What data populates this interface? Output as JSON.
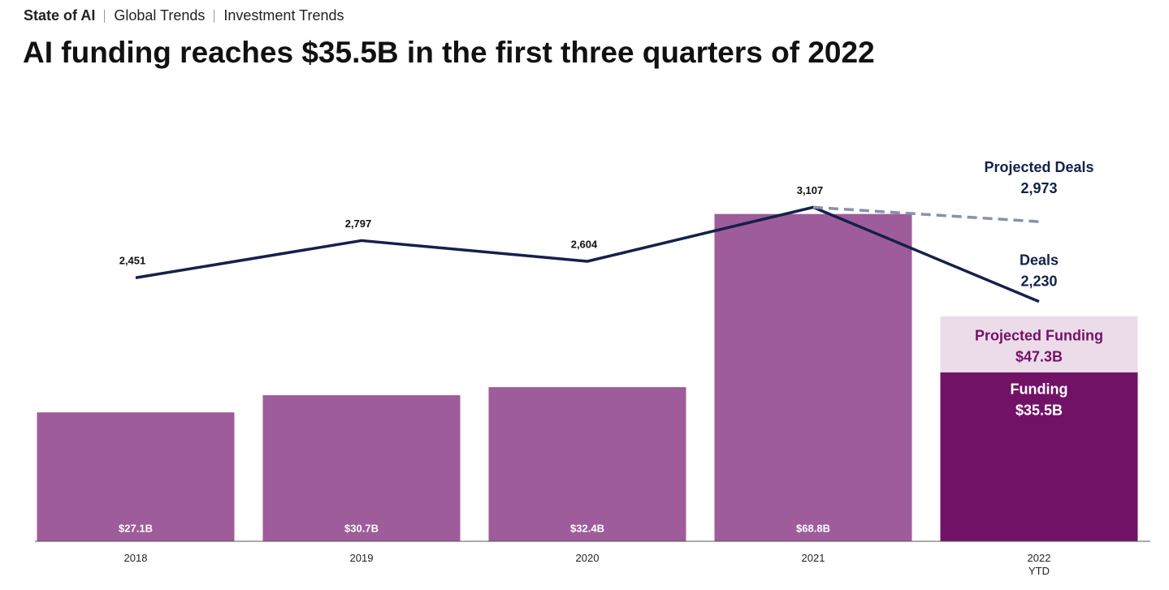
{
  "breadcrumb": [
    "State of AI",
    "Global Trends",
    "Investment Trends"
  ],
  "chart_data": {
    "type": "bar",
    "title": "AI funding reaches $35.5B in the first three quarters of 2022",
    "categories": [
      "2018",
      "2019",
      "2020",
      "2021",
      "2022 YTD"
    ],
    "ylim": [
      0,
      80
    ],
    "y2lim": [
      0,
      3540
    ],
    "series": [
      {
        "name": "Funding",
        "type": "bar",
        "colors": [
          "#9e5c9a",
          "#9e5c9a",
          "#9e5c9a",
          "#9e5c9a",
          "#721267"
        ],
        "values": [
          27.1,
          30.7,
          32.4,
          68.8,
          35.5
        ],
        "value_labels": [
          "$27.1B",
          "$30.7B",
          "$32.4B",
          "$68.8B",
          "$35.5B"
        ]
      },
      {
        "name": "Deals",
        "type": "line",
        "axis": "y2",
        "color": "#14214b",
        "values": [
          2451,
          2797,
          2604,
          3107,
          2230
        ],
        "value_labels": [
          "2,451",
          "2,797",
          "2,604",
          "3,107",
          "2,230"
        ]
      }
    ],
    "projected_funding": {
      "name": "Projected Funding",
      "value": 47.3,
      "value_label": "$47.3B",
      "color": "#ecdcea",
      "text_color": "#721267"
    },
    "projected_deals": {
      "name": "Projected Deals",
      "value": 2973,
      "value_label": "2,973",
      "color": "#8a91a8"
    }
  }
}
